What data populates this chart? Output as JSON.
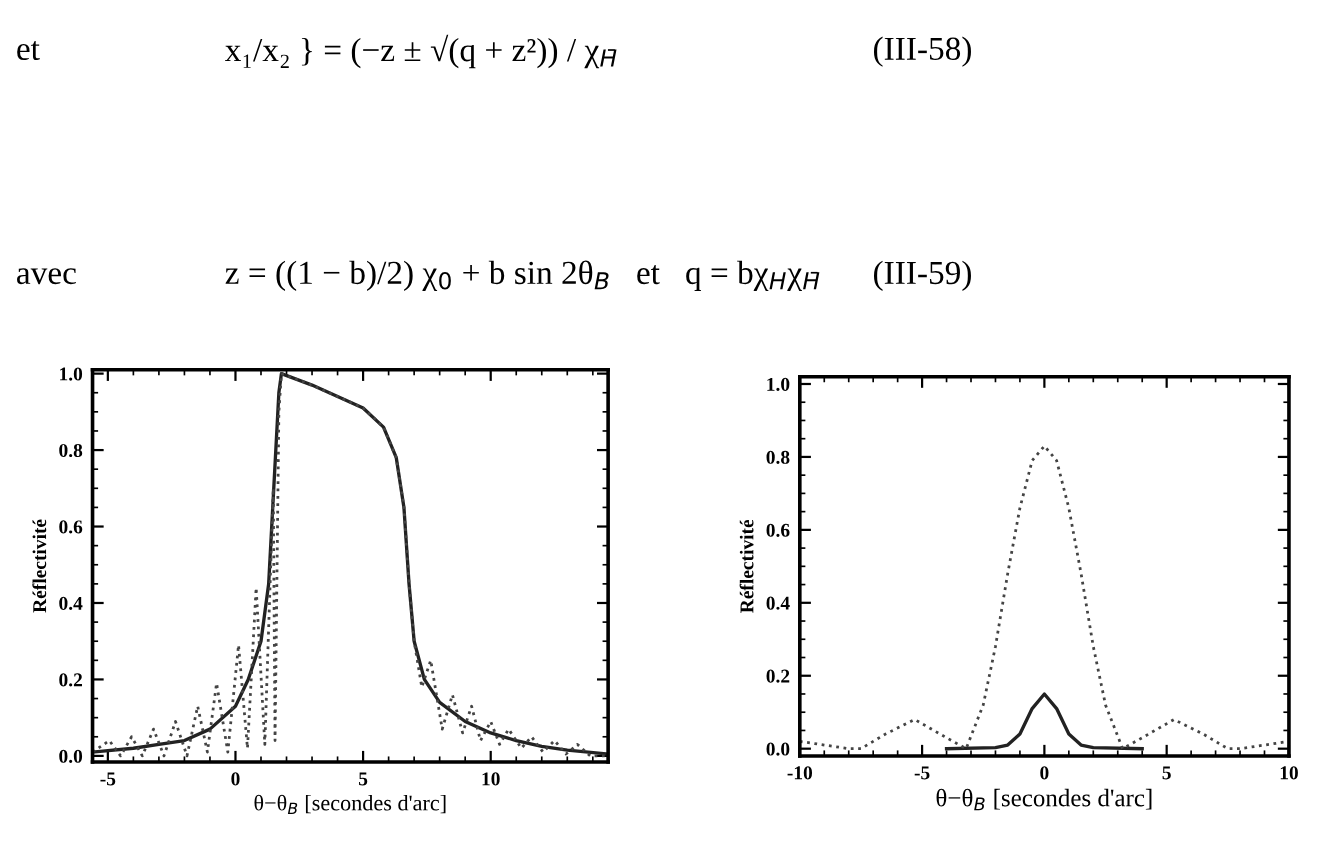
{
  "chart_data": [
    {
      "type": "line",
      "annotations": [
        "et",
        "x₁/x₂ } = (−z ± √(q + z²)) / χ$_{H̄}$",
        "(III-58)",
        "avec",
        "z = ((1 − b)/2) χ$_{0}$ + b sin 2θ$_{B}$   et   q = bχ$_{H}$χ$_{H̄}$",
        "(III-59)"
      ],
      "xlabel": "θ−θ$_{B}$ [secondes d'arc]",
      "ylabel": "Réflectivité",
      "xlim": [
        -5.6,
        14.6
      ],
      "ylim": [
        -0.016,
        1.01
      ],
      "xticks": [
        -5,
        0,
        5,
        10
      ],
      "yticks": [
        {
          "value": 0,
          "label": "0.0"
        },
        {
          "value": 0.2,
          "label": "0.2"
        },
        {
          "value": 0.4,
          "label": "0.4"
        },
        {
          "value": 0.6,
          "label": "0.6"
        },
        {
          "value": 0.8,
          "label": "0.8"
        },
        {
          "value": 1,
          "label": "1.0"
        }
      ],
      "series": [
        {
          "color": "#222222",
          "line_style": "solid",
          "x": [
            -5.6,
            -4,
            -3,
            -2,
            -1,
            0,
            0.5,
            1,
            1.3,
            1.5,
            1.7,
            1.8,
            3,
            4,
            5,
            5.8,
            6.3,
            6.6,
            6.8,
            7,
            7.4,
            8,
            9,
            10,
            11,
            12,
            13,
            14.6
          ],
          "values": [
            0.01,
            0.02,
            0.03,
            0.04,
            0.07,
            0.13,
            0.2,
            0.3,
            0.45,
            0.7,
            0.95,
            1.0,
            0.97,
            0.94,
            0.91,
            0.86,
            0.78,
            0.65,
            0.45,
            0.3,
            0.2,
            0.14,
            0.09,
            0.06,
            0.04,
            0.025,
            0.015,
            0.005
          ]
        },
        {
          "color": "#444444",
          "line_style": "dotted",
          "x": [
            -5.6,
            -4.94,
            -4.5,
            -4.07,
            -3.65,
            -3.21,
            -2.8,
            -2.35,
            -1.9,
            -1.48,
            -1.1,
            -0.74,
            -0.3,
            0.12,
            0.47,
            0.81,
            1.15,
            1.48,
            1.55,
            1.7,
            1.8,
            3,
            4,
            5,
            5.8,
            6.3,
            6.6,
            6.8,
            7,
            7.3,
            7.65,
            8.1,
            8.5,
            8.9,
            9.25,
            9.6,
            10,
            10.35,
            10.7,
            11.2,
            11.6,
            12.05,
            12.5,
            12.95,
            13.4,
            13.9,
            14.6
          ],
          "values": [
            0.01,
            0.04,
            0.0,
            0.05,
            0.0,
            0.07,
            0.0,
            0.09,
            0.0,
            0.13,
            0.01,
            0.19,
            0.01,
            0.29,
            0.02,
            0.44,
            0.03,
            0.7,
            0.04,
            0.9,
            1.0,
            0.97,
            0.94,
            0.91,
            0.86,
            0.78,
            0.65,
            0.45,
            0.3,
            0.18,
            0.25,
            0.07,
            0.16,
            0.06,
            0.13,
            0.04,
            0.09,
            0.03,
            0.07,
            0.02,
            0.05,
            0.01,
            0.04,
            0.005,
            0.03,
            0.0,
            0.0
          ]
        }
      ]
    },
    {
      "type": "line",
      "xlabel": "θ−θ$_{B}$ [secondes d'arc]",
      "ylabel": "Réflectivité",
      "xlim": [
        -10,
        10
      ],
      "ylim": [
        -0.02,
        1.02
      ],
      "xticks": [
        -10,
        -5,
        0,
        5,
        10
      ],
      "yticks": [
        {
          "value": 0,
          "label": "0.0"
        },
        {
          "value": 0.2,
          "label": "0.2"
        },
        {
          "value": 0.4,
          "label": "0.4"
        },
        {
          "value": 0.6,
          "label": "0.6"
        },
        {
          "value": 0.8,
          "label": "0.8"
        },
        {
          "value": 1,
          "label": "1.0"
        }
      ],
      "series": [
        {
          "color": "#222222",
          "line_style": "solid",
          "x": [
            -4,
            -2,
            -1.5,
            -1,
            -0.5,
            0,
            0.5,
            1,
            1.5,
            2,
            4
          ],
          "values": [
            0,
            0.003,
            0.01,
            0.04,
            0.11,
            0.15,
            0.11,
            0.04,
            0.01,
            0.003,
            0
          ]
        },
        {
          "color": "#444444",
          "line_style": "dotted",
          "x": [
            -10,
            -9,
            -8,
            -7.5,
            -6.5,
            -5.3,
            -4,
            -3.2,
            -2.5,
            -2,
            -1.5,
            -1,
            -0.5,
            0,
            0.5,
            1,
            1.5,
            2,
            2.5,
            3.2,
            4,
            5.3,
            6.5,
            7.5,
            8,
            9,
            10
          ],
          "values": [
            0.02,
            0.01,
            0,
            0,
            0.04,
            0.08,
            0.03,
            0,
            0.12,
            0.28,
            0.48,
            0.66,
            0.79,
            0.83,
            0.79,
            0.66,
            0.48,
            0.28,
            0.12,
            0,
            0.03,
            0.08,
            0.04,
            0,
            0,
            0.01,
            0.02
          ]
        }
      ]
    }
  ]
}
